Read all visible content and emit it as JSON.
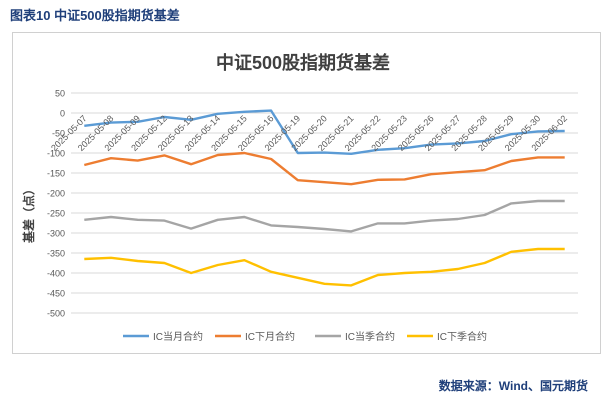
{
  "figure_caption": "图表10  中证500股指期货基差",
  "source_note": "数据来源：Wind、国元期货",
  "chart_data": {
    "type": "line",
    "title": "中证500股指期货基差",
    "ylabel": "基差（点）",
    "xlabel": "",
    "ylim": [
      -500,
      50
    ],
    "yticks": [
      50,
      0,
      -50,
      -100,
      -150,
      -200,
      -250,
      -300,
      -350,
      -400,
      -450,
      -500
    ],
    "grid": "horizontal",
    "legend_position": "bottom",
    "categories": [
      "2025-05-07",
      "2025-05-08",
      "2025-05-09",
      "2025-05-12",
      "2025-05-13",
      "2025-05-14",
      "2025-05-15",
      "2025-05-16",
      "2025-05-19",
      "2025-05-20",
      "2025-05-21",
      "2025-05-22",
      "2025-05-23",
      "2025-05-26",
      "2025-05-27",
      "2025-05-28",
      "2025-05-29",
      "2025-05-30",
      "2025-06-02"
    ],
    "series": [
      {
        "name": "IC当月合约",
        "color": "#5b9bd5",
        "values": [
          -32,
          -24,
          -22,
          -10,
          -17,
          -2,
          3,
          6,
          -100,
          -99,
          -102,
          -92,
          -88,
          -79,
          -76,
          -70,
          -53,
          -46,
          -45
        ]
      },
      {
        "name": "IC下月合约",
        "color": "#ed7d31",
        "values": [
          -130,
          -113,
          -119,
          -106,
          -128,
          -105,
          -100,
          -115,
          -168,
          -173,
          -178,
          -167,
          -166,
          -153,
          -148,
          -143,
          -120,
          -111,
          -111
        ]
      },
      {
        "name": "IC当季合约",
        "color": "#a5a5a5",
        "values": [
          -267,
          -260,
          -267,
          -269,
          -289,
          -267,
          -260,
          -281,
          -285,
          -290,
          -296,
          -276,
          -276,
          -269,
          -265,
          -255,
          -226,
          -220,
          -220
        ]
      },
      {
        "name": "IC下季合约",
        "color": "#ffc000",
        "values": [
          -365,
          -362,
          -370,
          -375,
          -400,
          -380,
          -368,
          -397,
          -412,
          -427,
          -431,
          -405,
          -400,
          -397,
          -390,
          -375,
          -347,
          -340,
          -340
        ]
      }
    ]
  }
}
